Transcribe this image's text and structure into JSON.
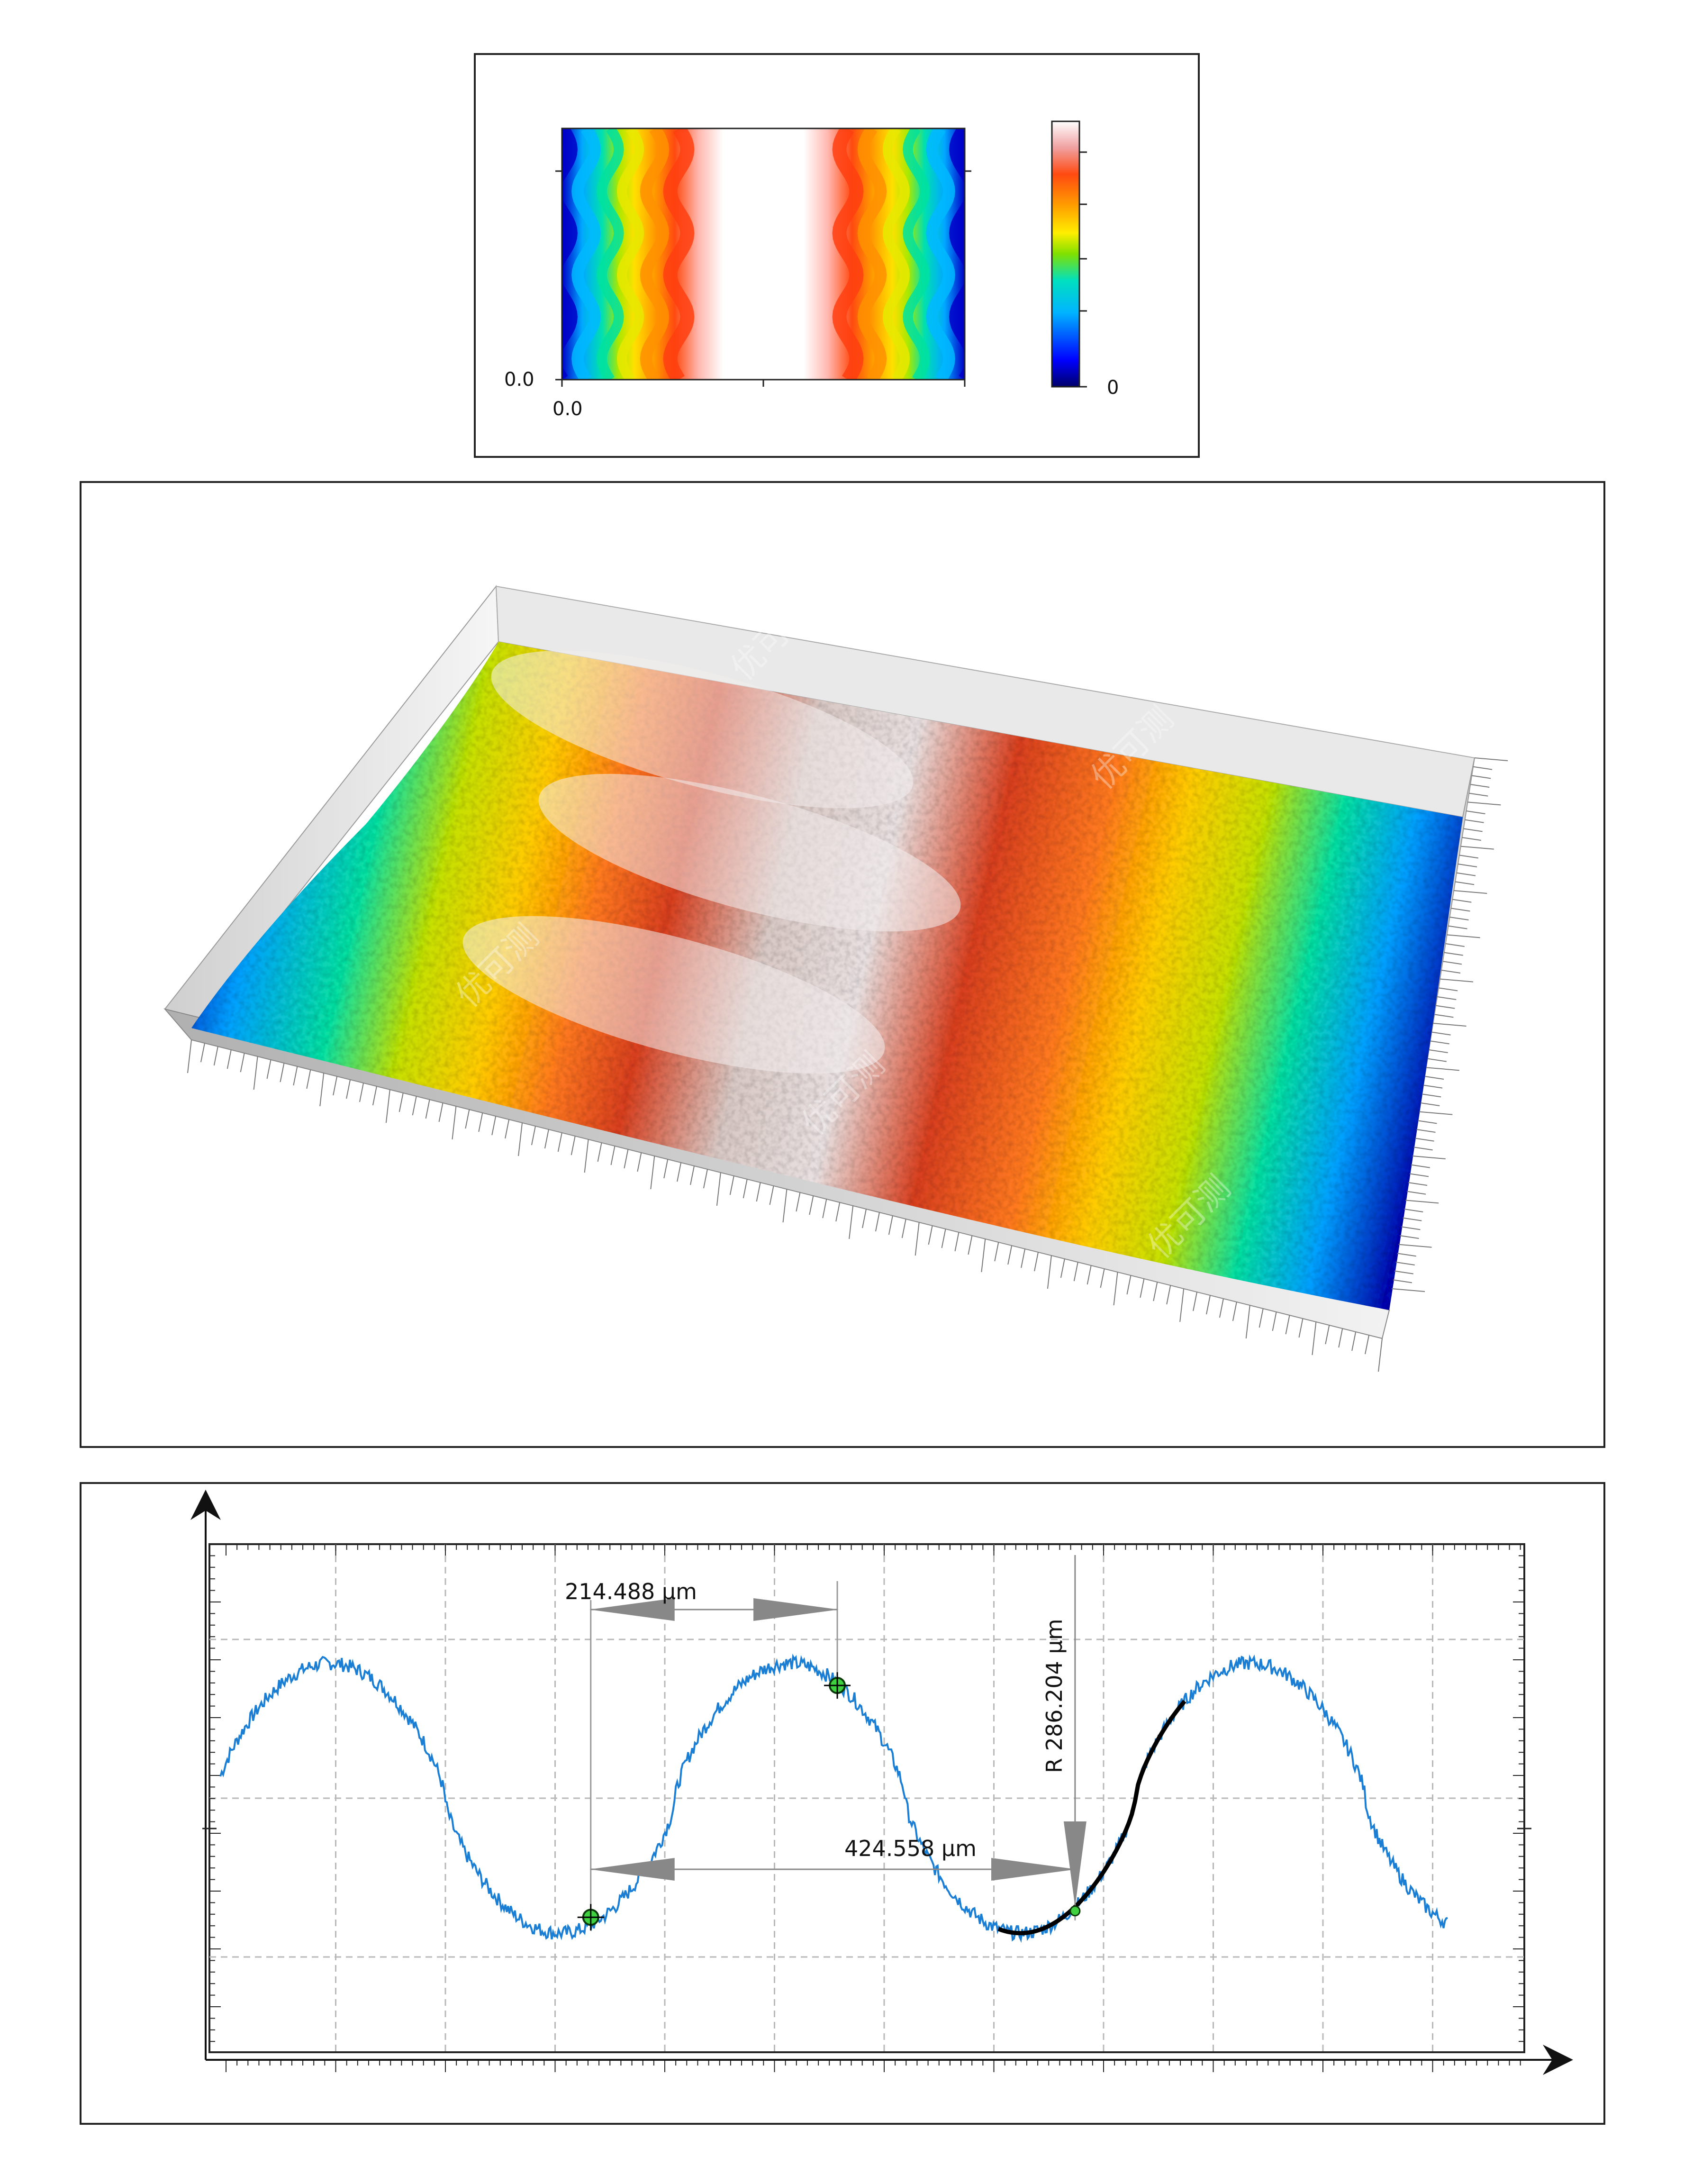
{
  "chart_data": [
    {
      "type": "heatmap",
      "title": "",
      "x_tick_labels": [
        "0.0"
      ],
      "y_tick_labels": [
        "0.0"
      ],
      "colorbar": {
        "tick_labels": [
          "0"
        ],
        "colormap": [
          "#00007a",
          "#0000ff",
          "#00b4ff",
          "#00e0c0",
          "#7fe000",
          "#ffee00",
          "#ffa000",
          "#ff4a10",
          "#e24020",
          "#ffffff"
        ]
      },
      "description_pattern": {
        "stripes": "sinusoidal vertical bands",
        "peaks": 3
      }
    },
    {
      "type": "surface3d",
      "title": "",
      "colormap": [
        "#0010b0",
        "#00a0ff",
        "#10e0a0",
        "#c8e000",
        "#ffcc00",
        "#ff7a20",
        "#d84020",
        "#e8e0e0"
      ],
      "peaks": 3
    },
    {
      "type": "line",
      "title": "",
      "xlabel": "",
      "ylabel": "",
      "xlim": [
        0,
        1.2
      ],
      "ylim": [
        -1.6,
        1.6
      ],
      "series": [
        {
          "color": "#1a7fd4",
          "period": 0.42,
          "amplitude": 0.85,
          "phase_x_peak": 0.11
        }
      ],
      "fit_arc": {
        "color": "#000000",
        "x_start": 0.72,
        "x_end": 0.89,
        "x_min": 0.79
      },
      "markers": [
        {
          "x": 0.348,
          "y": -0.75
        },
        {
          "x": 0.573,
          "y": 0.71
        },
        {
          "x": 0.79,
          "y": -0.71
        }
      ],
      "measurements": {
        "horizontal_1": "214.488 µm",
        "horizontal_2": "424.558 µm",
        "radius": "R 286.204 µm"
      }
    }
  ],
  "watermark": "优可测"
}
